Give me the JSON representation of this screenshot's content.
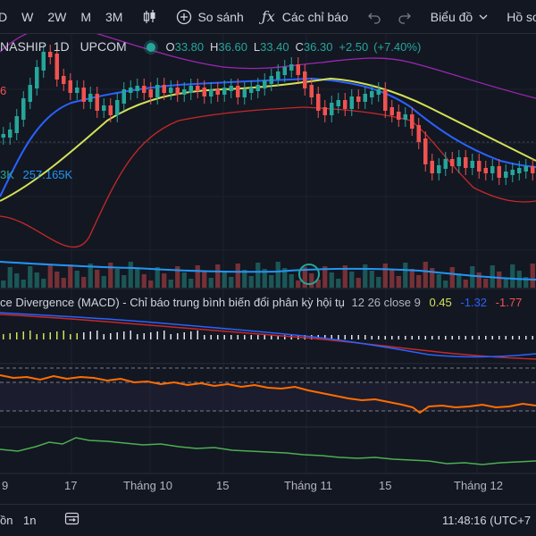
{
  "toolbar": {
    "interval_partial": "D",
    "interval_w": "W",
    "interval_2w": "2W",
    "interval_m": "M",
    "interval_3m": "3M",
    "compare_label": "So sánh",
    "indicators_label": "Các chỉ báo",
    "chart_template_label": "Biểu đồ",
    "profile_partial": "Hồ sơ"
  },
  "legend": {
    "symbol_partial": "NASHIP",
    "interval": "1D",
    "exchange": "UPCOM",
    "open_label": "O",
    "open_value": "33.80",
    "high_label": "H",
    "high_value": "36.60",
    "low_label": "L",
    "low_value": "33.40",
    "close_label": "C",
    "close_value": "36.30",
    "change": "+2.50",
    "change_pct": "(+7.40%)",
    "left_partial_value": "6",
    "volume_partial": "3K",
    "volume_ma": "257.165K"
  },
  "macd": {
    "title_partial": "ce Divergence (MACD) - Chỉ báo trung bình biến đổi phân kỳ hội tụ",
    "params": "12 26 close 9",
    "histogram": "0.45",
    "macd_value": "-1.32",
    "signal_value": "-1.77"
  },
  "time_axis": [
    "9",
    "17",
    "Tháng 10",
    "15",
    "Tháng 11",
    "15",
    "Tháng 12"
  ],
  "bottom_bar": {
    "range_partial": "ồn",
    "range_1n": "1n",
    "clock": "11:48:16 (UTC+7"
  },
  "colors": {
    "up": "#26a69a",
    "down": "#ef5350",
    "ma_fast": "#2962ff",
    "ma_slow": "#d4e157",
    "bb_upper": "#9c27b0",
    "bb_lower": "#c62828",
    "rsi": "#ff6d00",
    "green_ind": "#4caf50"
  }
}
